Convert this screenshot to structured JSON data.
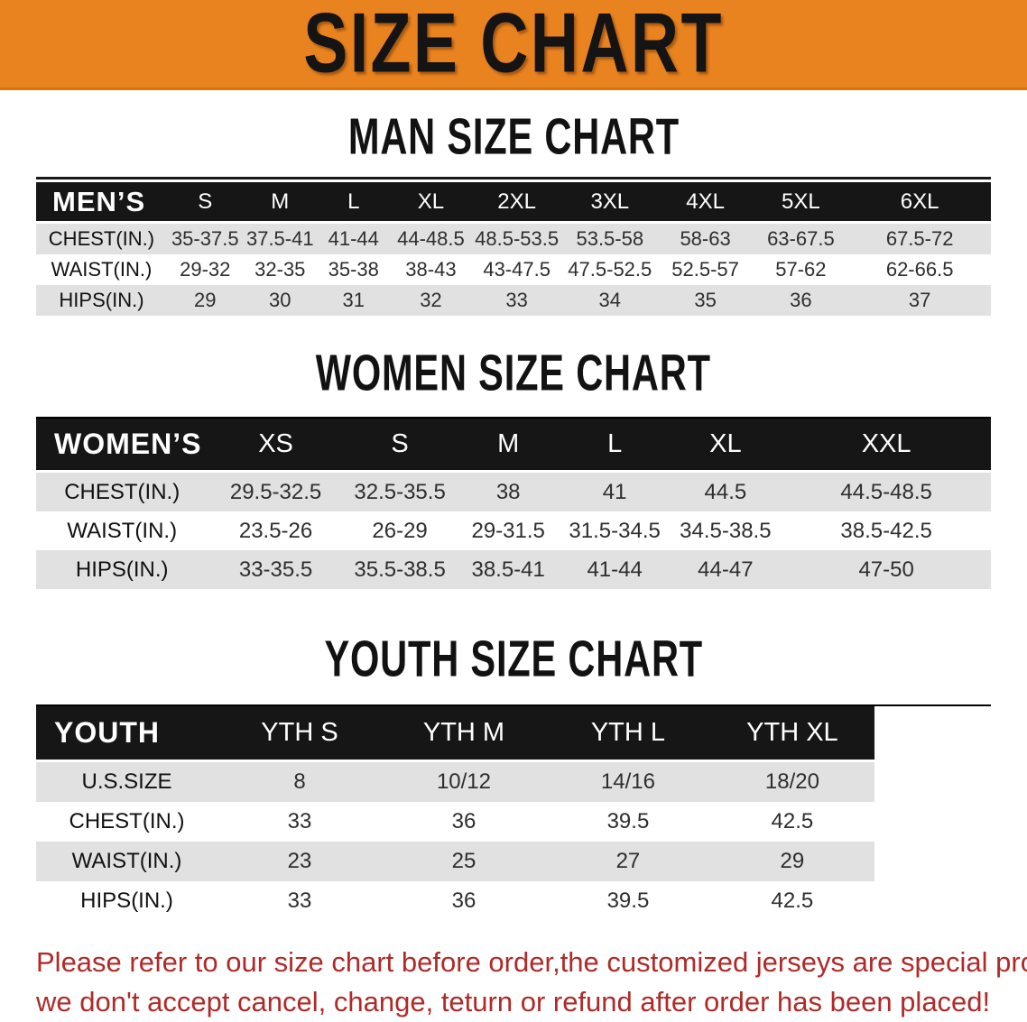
{
  "banner": {
    "title": "SIZE CHART"
  },
  "sections": {
    "men": {
      "title": "MAN SIZE CHART",
      "table": {
        "label": "MEN’S",
        "columns": [
          "S",
          "M",
          "L",
          "XL",
          "2XL",
          "3XL",
          "4XL",
          "5XL",
          "6XL"
        ],
        "rows": [
          {
            "label": "CHEST(IN.)",
            "values": [
              "35-37.5",
              "37.5-41",
              "41-44",
              "44-48.5",
              "48.5-53.5",
              "53.5-58",
              "58-63",
              "63-67.5",
              "67.5-72"
            ]
          },
          {
            "label": "WAIST(IN.)",
            "values": [
              "29-32",
              "32-35",
              "35-38",
              "38-43",
              "43-47.5",
              "47.5-52.5",
              "52.5-57",
              "57-62",
              "62-66.5"
            ]
          },
          {
            "label": "HIPS(IN.)",
            "values": [
              "29",
              "30",
              "31",
              "32",
              "33",
              "34",
              "35",
              "36",
              "37"
            ]
          }
        ]
      }
    },
    "women": {
      "title": "WOMEN SIZE CHART",
      "table": {
        "label": "WOMEN’S",
        "columns": [
          "XS",
          "S",
          "M",
          "L",
          "XL",
          "XXL"
        ],
        "rows": [
          {
            "label": "CHEST(IN.)",
            "values": [
              "29.5-32.5",
              "32.5-35.5",
              "38",
              "41",
              "44.5",
              "44.5-48.5"
            ]
          },
          {
            "label": "WAIST(IN.)",
            "values": [
              "23.5-26",
              "26-29",
              "29-31.5",
              "31.5-34.5",
              "34.5-38.5",
              "38.5-42.5"
            ]
          },
          {
            "label": "HIPS(IN.)",
            "values": [
              "33-35.5",
              "35.5-38.5",
              "38.5-41",
              "41-44",
              "44-47",
              "47-50"
            ]
          }
        ]
      }
    },
    "youth": {
      "title": "YOUTH SIZE CHART",
      "table": {
        "label": "YOUTH",
        "columns": [
          "YTH S",
          "YTH M",
          "YTH L",
          "YTH XL"
        ],
        "rows": [
          {
            "label": "U.S.SIZE",
            "values": [
              "8",
              "10/12",
              "14/16",
              "18/20"
            ]
          },
          {
            "label": "CHEST(IN.)",
            "values": [
              "33",
              "36",
              "39.5",
              "42.5"
            ]
          },
          {
            "label": "WAIST(IN.)",
            "values": [
              "23",
              "25",
              "27",
              "29"
            ]
          },
          {
            "label": "HIPS(IN.)",
            "values": [
              "33",
              "36",
              "39.5",
              "42.5"
            ]
          }
        ]
      }
    }
  },
  "footer": {
    "line1": "Please refer to our size chart before order,the customized jerseys are special products,",
    "line2": "we don't accept cancel, change, teturn or refund after order has been placed!"
  },
  "colors": {
    "banner_bg": "#E8831F",
    "banner_text": "#141414",
    "header_band_bg": "#161616",
    "header_band_text": "#FFFFFF",
    "alt_row_bg": "#E1E1E1",
    "notice_text": "#B02A28"
  }
}
